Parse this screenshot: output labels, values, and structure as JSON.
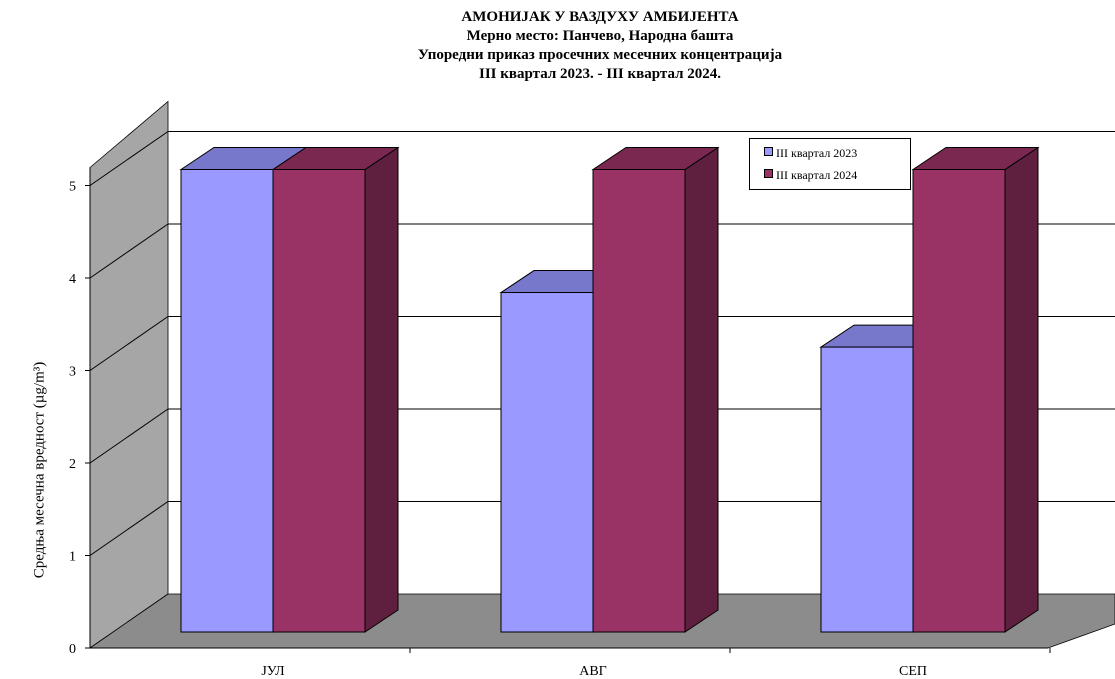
{
  "chart_data": {
    "type": "bar",
    "title": "АМОНИЈАК У ВАЗДУХУ АМБИЈЕНТА",
    "subtitle_lines": [
      "Мерно место: Панчево, Народна башта",
      "Упоредни приказ просечних месечних концентрација",
      "III квартал 2023. - III квартал 2024."
    ],
    "xlabel": "",
    "ylabel": "Средња месечна вредност (µg/m³)",
    "categories": [
      "ЈУЛ",
      "АВГ",
      "СЕП"
    ],
    "series": [
      {
        "name": "III квартал 2023",
        "values": [
          5,
          3.67,
          3.08
        ],
        "color": "#9999FF"
      },
      {
        "name": "III квартал 2024",
        "values": [
          5,
          5,
          5
        ],
        "color": "#993366"
      }
    ],
    "ylim": [
      0,
      5
    ],
    "yticks": [
      "0",
      "1",
      "2",
      "3",
      "4",
      "5"
    ],
    "grid": true,
    "legend_position": "top-right",
    "style": "3d-clustered-column"
  }
}
